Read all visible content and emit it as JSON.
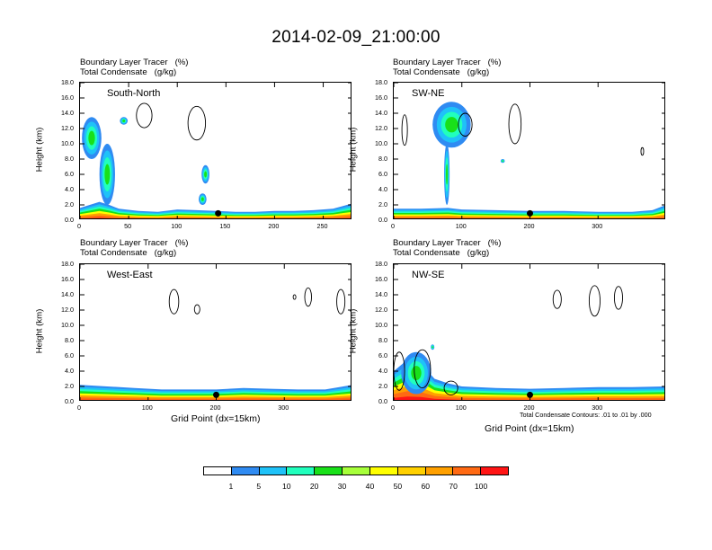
{
  "figure": {
    "title": "2014-02-09_21:00:00",
    "contour_note": "Total Condensate Contours: .01 to .01 by .000"
  },
  "chart_data": [
    {
      "type": "heatmap",
      "title": "South-North",
      "left_labels": [
        "Boundary Layer Tracer   (%)",
        "Total Condensate   (g/kg)"
      ],
      "ylabel": "Height (km)",
      "xlabel": "",
      "ylim": [
        0,
        18
      ],
      "xlim": [
        0,
        280
      ],
      "yticks": [
        "0.0",
        "2.0",
        "4.0",
        "6.0",
        "8.0",
        "10.0",
        "12.0",
        "14.0",
        "16.0",
        "18.0"
      ],
      "xticks": [
        0,
        50,
        100,
        150,
        200,
        250
      ],
      "surface_top_km": [
        [
          0,
          1.6
        ],
        [
          10,
          2.0
        ],
        [
          20,
          2.4
        ],
        [
          30,
          2.0
        ],
        [
          40,
          1.5
        ],
        [
          60,
          1.2
        ],
        [
          80,
          1.1
        ],
        [
          100,
          1.4
        ],
        [
          120,
          1.3
        ],
        [
          140,
          1.2
        ],
        [
          160,
          1.1
        ],
        [
          180,
          1.1
        ],
        [
          200,
          1.2
        ],
        [
          220,
          1.2
        ],
        [
          240,
          1.3
        ],
        [
          260,
          1.5
        ],
        [
          280,
          2.2
        ]
      ],
      "plumes": [
        {
          "x_center": 28,
          "x_halfwidth": 8,
          "z_bottom": 2,
          "z_top": 10
        },
        {
          "x_center": 12,
          "x_halfwidth": 10,
          "z_bottom": 8,
          "z_top": 13.5
        },
        {
          "x_center": 45,
          "x_halfwidth": 4,
          "z_bottom": 12.5,
          "z_top": 13.5
        },
        {
          "x_center": 129,
          "x_halfwidth": 4,
          "z_bottom": 4.8,
          "z_top": 7.2
        },
        {
          "x_center": 126,
          "x_halfwidth": 4,
          "z_bottom": 2.0,
          "z_top": 3.5
        }
      ],
      "cloud_contours": [
        {
          "x": 66,
          "z": 13.7,
          "rx": 8,
          "rz": 1.6
        },
        {
          "x": 120,
          "z": 12.7,
          "rx": 9,
          "rz": 2.2
        }
      ],
      "marker_x": 142
    },
    {
      "type": "heatmap",
      "title": "SW-NE",
      "left_labels": [
        "Boundary Layer Tracer   (%)",
        "Total Condensate   (g/kg)"
      ],
      "ylabel": "Height (km)",
      "xlabel": "",
      "ylim": [
        0,
        18
      ],
      "xlim": [
        0,
        400
      ],
      "yticks": [
        "0.0",
        "2.0",
        "4.0",
        "6.0",
        "8.0",
        "10.0",
        "12.0",
        "14.0",
        "16.0",
        "18.0"
      ],
      "xticks": [
        0,
        100,
        200,
        300
      ],
      "surface_top_km": [
        [
          0,
          1.5
        ],
        [
          40,
          1.5
        ],
        [
          80,
          1.6
        ],
        [
          100,
          1.4
        ],
        [
          150,
          1.3
        ],
        [
          200,
          1.2
        ],
        [
          250,
          1.2
        ],
        [
          300,
          1.1
        ],
        [
          350,
          1.1
        ],
        [
          380,
          1.3
        ],
        [
          400,
          2.0
        ]
      ],
      "plumes": [
        {
          "x_center": 78,
          "x_halfwidth": 4,
          "z_bottom": 2,
          "z_top": 10
        },
        {
          "x_center": 85,
          "x_halfwidth": 28,
          "z_bottom": 9.5,
          "z_top": 15.5
        },
        {
          "x_center": 160,
          "x_halfwidth": 3,
          "z_bottom": 7.5,
          "z_top": 8
        }
      ],
      "cloud_contours": [
        {
          "x": 16,
          "z": 11.8,
          "rx": 4,
          "rz": 2
        },
        {
          "x": 105,
          "z": 12.5,
          "rx": 10,
          "rz": 1.5
        },
        {
          "x": 178,
          "z": 12.6,
          "rx": 9,
          "rz": 2.6
        },
        {
          "x": 365,
          "z": 9,
          "rx": 1,
          "rz": 0.5
        }
      ],
      "marker_x": 200
    },
    {
      "type": "heatmap",
      "title": "West-East",
      "left_labels": [
        "Boundary Layer Tracer   (%)",
        "Total Condensate   (g/kg)"
      ],
      "ylabel": "Height (km)",
      "xlabel": "Grid Point (dx=15km)",
      "ylim": [
        0,
        18
      ],
      "xlim": [
        0,
        400
      ],
      "yticks": [
        "0.0",
        "2.0",
        "4.0",
        "6.0",
        "8.0",
        "10.0",
        "12.0",
        "14.0",
        "16.0",
        "18.0"
      ],
      "xticks": [
        0,
        100,
        200,
        300
      ],
      "surface_top_km": [
        [
          0,
          2.2
        ],
        [
          40,
          2.0
        ],
        [
          80,
          1.8
        ],
        [
          120,
          1.6
        ],
        [
          160,
          1.6
        ],
        [
          200,
          1.6
        ],
        [
          240,
          1.8
        ],
        [
          280,
          1.7
        ],
        [
          320,
          1.6
        ],
        [
          360,
          1.6
        ],
        [
          400,
          2.2
        ]
      ],
      "plumes": [],
      "cloud_contours": [
        {
          "x": 138,
          "z": 13.1,
          "rx": 7,
          "rz": 1.6
        },
        {
          "x": 172,
          "z": 12.1,
          "rx": 4,
          "rz": 0.6
        },
        {
          "x": 315,
          "z": 13.7,
          "rx": 0.6,
          "rz": 0.3
        },
        {
          "x": 335,
          "z": 13.7,
          "rx": 5,
          "rz": 1.2
        },
        {
          "x": 383,
          "z": 13.1,
          "rx": 6,
          "rz": 1.6
        }
      ],
      "marker_x": 200
    },
    {
      "type": "heatmap",
      "title": "NW-SE",
      "left_labels": [
        "Boundary Layer Tracer   (%)",
        "Total Condensate   (g/kg)"
      ],
      "ylabel": "Height (km)",
      "xlabel": "Grid Point (dx=15km)",
      "ylim": [
        0,
        18
      ],
      "xlim": [
        0,
        400
      ],
      "yticks": [
        "0.0",
        "2.0",
        "4.0",
        "6.0",
        "8.0",
        "10.0",
        "12.0",
        "14.0",
        "16.0",
        "18.0"
      ],
      "xticks": [
        0,
        100,
        200,
        300
      ],
      "surface_top_km": [
        [
          0,
          4.0
        ],
        [
          20,
          5.5
        ],
        [
          40,
          5.0
        ],
        [
          60,
          3.0
        ],
        [
          80,
          2.4
        ],
        [
          100,
          2.0
        ],
        [
          150,
          1.8
        ],
        [
          200,
          1.7
        ],
        [
          250,
          1.8
        ],
        [
          300,
          1.9
        ],
        [
          350,
          1.9
        ],
        [
          400,
          2.0
        ]
      ],
      "plumes": [
        {
          "x_center": 33,
          "x_halfwidth": 22,
          "z_bottom": 1,
          "z_top": 6.5
        },
        {
          "x_center": 57,
          "x_halfwidth": 2,
          "z_bottom": 6.8,
          "z_top": 7.5
        }
      ],
      "cloud_contours": [
        {
          "x": 240,
          "z": 13.4,
          "rx": 6,
          "rz": 1.2
        },
        {
          "x": 295,
          "z": 13.2,
          "rx": 8,
          "rz": 2.0
        },
        {
          "x": 330,
          "z": 13.6,
          "rx": 6,
          "rz": 1.5
        },
        {
          "x": 8,
          "z": 4,
          "rx": 8,
          "rz": 2.5
        },
        {
          "x": 42,
          "z": 4.3,
          "rx": 12,
          "rz": 2.5
        },
        {
          "x": 84,
          "z": 1.8,
          "rx": 10,
          "rz": 0.9
        }
      ],
      "marker_x": 200
    }
  ],
  "colorbar": {
    "colors": [
      "#ffffff",
      "#2f8bf2",
      "#1fc2f8",
      "#21ffbd",
      "#19e019",
      "#a7ff3a",
      "#ffff00",
      "#ffd000",
      "#ffa000",
      "#ff6a13",
      "#ff1515"
    ],
    "labels": [
      "1",
      "5",
      "10",
      "20",
      "30",
      "40",
      "50",
      "60",
      "70",
      "100"
    ]
  }
}
